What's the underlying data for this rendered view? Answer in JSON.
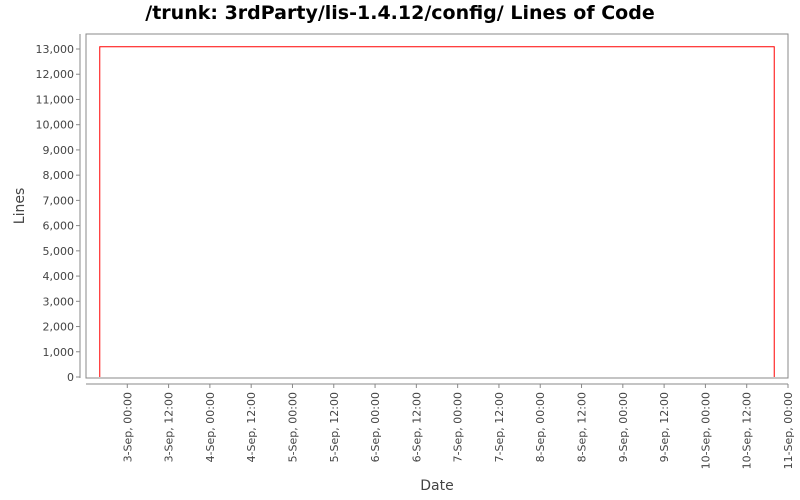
{
  "chart_data": {
    "type": "line",
    "title": "/trunk: 3rdParty/lis-1.4.12/config/ Lines of Code",
    "xlabel": "Date",
    "ylabel": "Lines",
    "ylim": [
      0,
      13700
    ],
    "xlim": [
      "2-Sep 12:00",
      "11-Sep 00:00"
    ],
    "y_ticks": [
      "0",
      "1,000",
      "2,000",
      "3,000",
      "4,000",
      "5,000",
      "6,000",
      "7,000",
      "8,000",
      "9,000",
      "10,000",
      "11,000",
      "12,000",
      "13,000"
    ],
    "x_ticks": [
      "3-Sep, 00:00",
      "3-Sep, 12:00",
      "4-Sep, 00:00",
      "4-Sep, 12:00",
      "5-Sep, 00:00",
      "5-Sep, 12:00",
      "6-Sep, 00:00",
      "6-Sep, 12:00",
      "7-Sep, 00:00",
      "7-Sep, 12:00",
      "8-Sep, 00:00",
      "8-Sep, 12:00",
      "9-Sep, 00:00",
      "9-Sep, 12:00",
      "10-Sep, 00:00",
      "10-Sep, 12:00",
      "11-Sep, 00:00"
    ],
    "series": [
      {
        "color": "#ff0000",
        "points": [
          {
            "x": "2-Sep 16:00",
            "y": 0
          },
          {
            "x": "2-Sep 16:00",
            "y": 13090
          },
          {
            "x": "10-Sep 20:00",
            "y": 13090
          },
          {
            "x": "10-Sep 20:00",
            "y": 0
          }
        ]
      }
    ],
    "grid": false,
    "legend": "none"
  }
}
